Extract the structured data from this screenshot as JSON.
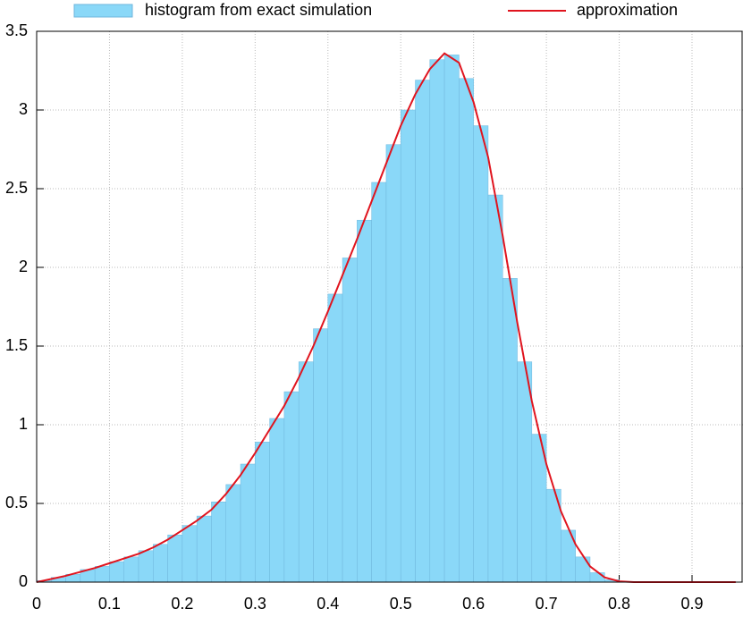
{
  "chart_data": [
    {
      "type": "histogram",
      "name": "histogram from exact simulation",
      "color": "#8ad8f8",
      "edgecolor": "#6fb6dc",
      "bins": [
        0,
        0.02,
        0.04,
        0.06,
        0.08,
        0.1,
        0.12,
        0.14,
        0.16,
        0.18,
        0.2,
        0.22,
        0.24,
        0.26,
        0.28,
        0.3,
        0.32,
        0.34,
        0.36,
        0.38,
        0.4,
        0.42,
        0.44,
        0.46,
        0.48,
        0.5,
        0.52,
        0.54,
        0.56,
        0.58,
        0.6,
        0.62,
        0.64,
        0.66,
        0.68,
        0.7,
        0.72,
        0.74,
        0.76,
        0.78,
        0.8
      ],
      "values": [
        0.01,
        0.03,
        0.05,
        0.08,
        0.1,
        0.13,
        0.16,
        0.2,
        0.24,
        0.3,
        0.36,
        0.42,
        0.51,
        0.62,
        0.75,
        0.89,
        1.04,
        1.21,
        1.4,
        1.61,
        1.83,
        2.06,
        2.3,
        2.54,
        2.78,
        3.0,
        3.19,
        3.32,
        3.35,
        3.2,
        2.9,
        2.46,
        1.93,
        1.4,
        0.94,
        0.59,
        0.33,
        0.16,
        0.06,
        0.015
      ],
      "xlim": [
        0,
        0.97
      ],
      "xticks": [
        0,
        0.1,
        0.2,
        0.3,
        0.4,
        0.5,
        0.6,
        0.7,
        0.8,
        0.9
      ],
      "ylim": [
        0,
        3.5
      ],
      "yticks": [
        0,
        0.5,
        1,
        1.5,
        2,
        2.5,
        3,
        3.5
      ],
      "grid": true
    },
    {
      "type": "line",
      "name": "approximation",
      "color": "#e0141e",
      "x": [
        0,
        0.02,
        0.04,
        0.06,
        0.08,
        0.1,
        0.12,
        0.14,
        0.16,
        0.18,
        0.2,
        0.22,
        0.24,
        0.26,
        0.28,
        0.3,
        0.32,
        0.34,
        0.36,
        0.38,
        0.4,
        0.42,
        0.44,
        0.46,
        0.48,
        0.5,
        0.52,
        0.54,
        0.56,
        0.58,
        0.6,
        0.62,
        0.64,
        0.66,
        0.68,
        0.7,
        0.72,
        0.74,
        0.76,
        0.78,
        0.8,
        0.82,
        0.84,
        0.86,
        0.88,
        0.9,
        0.92,
        0.94,
        0.96
      ],
      "values": [
        0,
        0.02,
        0.04,
        0.065,
        0.09,
        0.12,
        0.15,
        0.18,
        0.22,
        0.27,
        0.33,
        0.39,
        0.46,
        0.56,
        0.68,
        0.82,
        0.97,
        1.12,
        1.3,
        1.5,
        1.72,
        1.95,
        2.18,
        2.42,
        2.66,
        2.9,
        3.1,
        3.26,
        3.36,
        3.3,
        3.05,
        2.7,
        2.2,
        1.65,
        1.15,
        0.75,
        0.45,
        0.24,
        0.1,
        0.03,
        0.005,
        0,
        0,
        0,
        0,
        0,
        0,
        0,
        0
      ]
    }
  ]
}
